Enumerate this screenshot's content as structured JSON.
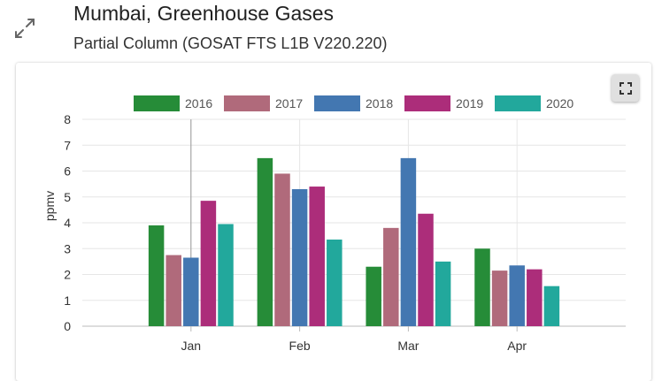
{
  "header": {
    "title": "Mumbai, Greenhouse Gases",
    "subtitle": "Partial Column (GOSAT FTS L1B V220.220)",
    "expand_icon": "expand-arrows-icon"
  },
  "toolbar": {
    "fullscreen_icon": "fullscreen-icon"
  },
  "chart_data": {
    "type": "bar",
    "categories": [
      "Jan",
      "Feb",
      "Mar",
      "Apr"
    ],
    "series": [
      {
        "name": "2016",
        "color": "#268c38",
        "values": [
          3.9,
          6.5,
          2.3,
          3.0
        ]
      },
      {
        "name": "2017",
        "color": "#b06a7b",
        "values": [
          2.75,
          5.9,
          3.8,
          2.15
        ]
      },
      {
        "name": "2018",
        "color": "#4377b1",
        "values": [
          2.65,
          5.3,
          6.5,
          2.35
        ]
      },
      {
        "name": "2019",
        "color": "#ac2d7a",
        "values": [
          4.85,
          5.4,
          4.35,
          2.2
        ]
      },
      {
        "name": "2020",
        "color": "#22a89c",
        "values": [
          3.95,
          3.35,
          2.5,
          1.55
        ]
      }
    ],
    "xlabel": "",
    "ylabel": "ppmv",
    "ylim": [
      0,
      8
    ],
    "yticks": [
      "0",
      "1",
      "2",
      "3",
      "4",
      "5",
      "6",
      "7",
      "8"
    ],
    "grid": true,
    "legend_position": "top-center"
  }
}
